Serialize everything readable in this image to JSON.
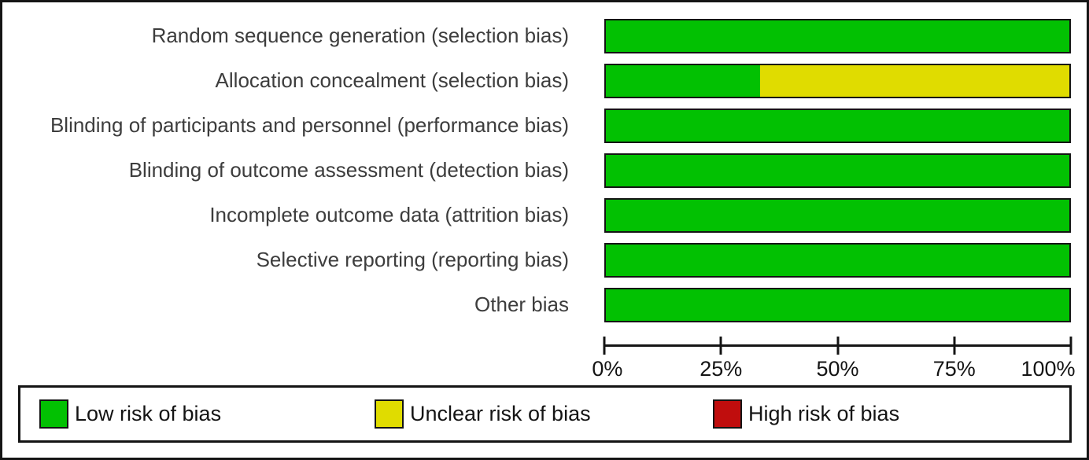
{
  "chart_data": {
    "type": "bar",
    "orientation": "horizontal",
    "stacked": true,
    "unit": "%",
    "categories": [
      "Random sequence generation (selection bias)",
      "Allocation concealment (selection bias)",
      "Blinding of participants and personnel (performance bias)",
      "Blinding of outcome assessment (detection bias)",
      "Incomplete outcome data (attrition bias)",
      "Selective reporting (reporting bias)",
      "Other bias"
    ],
    "series": [
      {
        "name": "Low risk of bias",
        "color": "#02c102",
        "values": [
          100,
          33.3,
          100,
          100,
          100,
          100,
          100
        ]
      },
      {
        "name": "Unclear risk of bias",
        "color": "#e0dc00",
        "values": [
          0,
          66.7,
          0,
          0,
          0,
          0,
          0
        ]
      },
      {
        "name": "High risk of bias",
        "color": "#c00d0d",
        "values": [
          0,
          0,
          0,
          0,
          0,
          0,
          0
        ]
      }
    ],
    "xlim": [
      0,
      100
    ],
    "x_ticks": [
      {
        "value": 0,
        "label": "0%"
      },
      {
        "value": 25,
        "label": "25%"
      },
      {
        "value": 50,
        "label": "50%"
      },
      {
        "value": 75,
        "label": "75%"
      },
      {
        "value": 100,
        "label": "100%"
      }
    ],
    "grid": false,
    "legend_position": "bottom"
  },
  "colors": {
    "low_risk": "#02c102",
    "unclear_risk": "#e0dc00",
    "high_risk": "#c00d0d",
    "border": "#141414",
    "category_text": "#3d3d3d"
  }
}
